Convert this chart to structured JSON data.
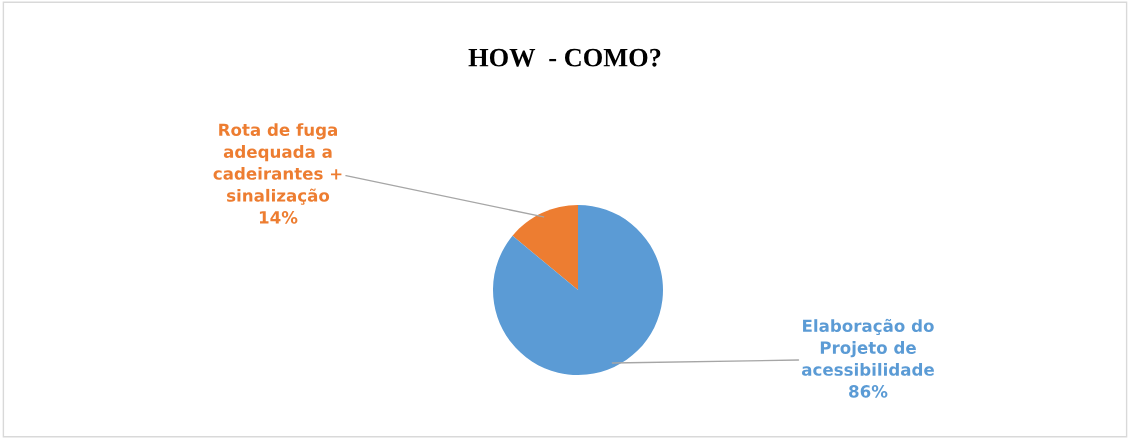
{
  "chart_data": {
    "type": "pie",
    "title": "HOW  - COMO?",
    "categories": [
      "Rota de fuga\nadequada a\ncadeirantes +\nsinalização",
      "Elaboração do\nProjeto de\nacessibilidade"
    ],
    "values": [
      14,
      86
    ],
    "value_labels": [
      "14%",
      "86%"
    ],
    "colors": [
      "#ed7d31",
      "#5b9bd5"
    ],
    "legend": false
  }
}
